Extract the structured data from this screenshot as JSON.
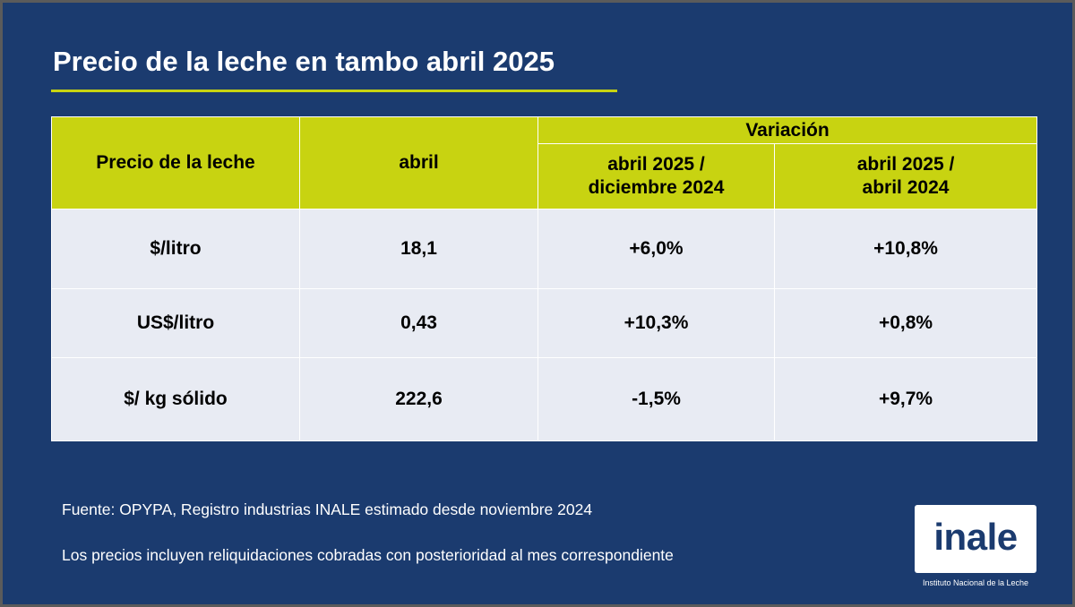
{
  "title": "Precio de la leche en tambo abril 2025",
  "table": {
    "header": {
      "col1": "Precio de la leche",
      "col2": "abril",
      "group": "Variación",
      "sub1_line1": "abril 2025 /",
      "sub1_line2": "diciembre 2024",
      "sub2_line1": "abril 2025 /",
      "sub2_line2": "abril 2024"
    },
    "rows": [
      {
        "label": "$/litro",
        "abril": "18,1",
        "var_dic": "+6,0%",
        "var_abr": "+10,8%"
      },
      {
        "label": "US$/litro",
        "abril": "0,43",
        "var_dic": "+10,3%",
        "var_abr": "+0,8%"
      },
      {
        "label": "$/ kg sólido",
        "abril": "222,6",
        "var_dic": "-1,5%",
        "var_abr": "+9,7%"
      }
    ]
  },
  "footnotes": {
    "source": "Fuente: OPYPA, Registro industrias INALE estimado desde noviembre 2024",
    "note": "Los precios incluyen reliquidaciones cobradas con posterioridad al mes correspondiente"
  },
  "logo": {
    "text": "inale",
    "caption": "Instituto Nacional de la Leche"
  },
  "colors": {
    "background": "#1b3b6f",
    "accent": "#c8d311",
    "row_fill": "#e8ebf3"
  }
}
